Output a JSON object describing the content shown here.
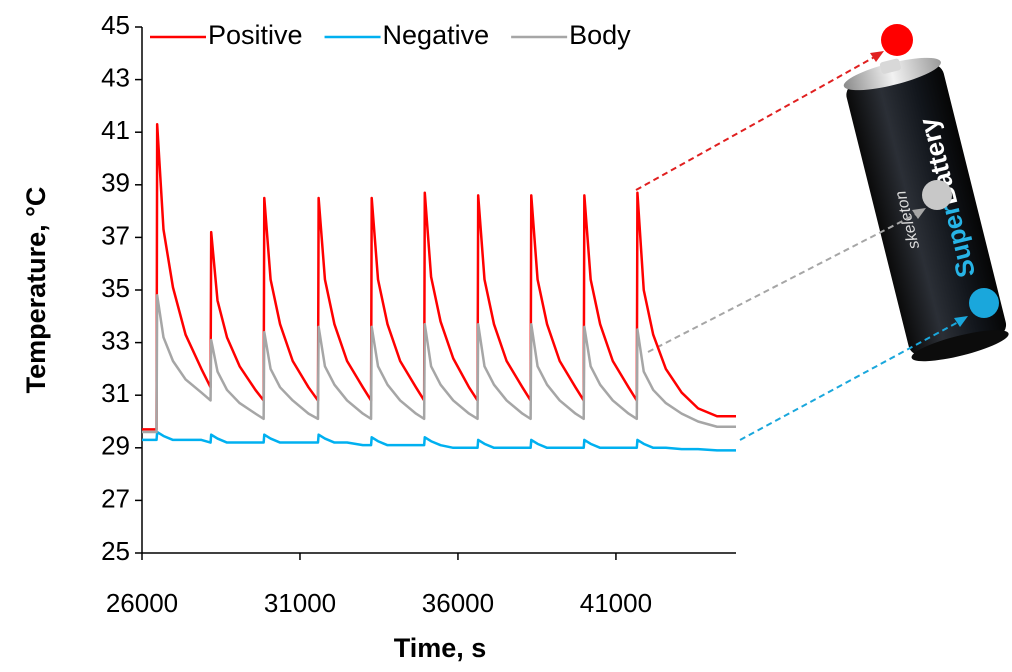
{
  "chart_data": {
    "type": "line",
    "y_label": "Temperature, °C",
    "x_label": "Time, s",
    "legend_position": "top",
    "grid": false,
    "xlim": [
      26000,
      44800
    ],
    "xticks": [
      26000,
      31000,
      36000,
      41000
    ],
    "ylim": [
      25,
      45
    ],
    "yticks": [
      25,
      27,
      29,
      31,
      33,
      35,
      37,
      39,
      41,
      43,
      45
    ],
    "x": [
      26000,
      26460,
      26480,
      26680,
      26980,
      27380,
      27880,
      28170,
      28190,
      28390,
      28690,
      29090,
      29590,
      29850,
      29870,
      30070,
      30370,
      30770,
      31270,
      31570,
      31590,
      31790,
      32090,
      32490,
      32990,
      33250,
      33270,
      33470,
      33770,
      34170,
      34670,
      34930,
      34950,
      35150,
      35450,
      35850,
      36350,
      36620,
      36640,
      36840,
      37140,
      37540,
      38040,
      38300,
      38320,
      38520,
      38820,
      39220,
      39720,
      39980,
      40000,
      40200,
      40500,
      40900,
      41400,
      41660,
      41680,
      41880,
      42180,
      42580,
      43080,
      43600,
      44200,
      44800
    ],
    "series": [
      {
        "name": "Positive",
        "color": "#ff0000",
        "values": [
          29.7,
          29.7,
          41.3,
          37.3,
          35.1,
          33.3,
          32.0,
          31.3,
          37.2,
          34.6,
          33.2,
          32.1,
          31.2,
          30.8,
          38.5,
          35.4,
          33.7,
          32.3,
          31.3,
          30.8,
          38.5,
          35.4,
          33.7,
          32.3,
          31.3,
          30.8,
          38.5,
          35.4,
          33.7,
          32.3,
          31.3,
          30.8,
          38.7,
          35.5,
          33.8,
          32.4,
          31.3,
          30.8,
          38.6,
          35.4,
          33.7,
          32.3,
          31.3,
          30.8,
          38.6,
          35.4,
          33.7,
          32.3,
          31.3,
          30.8,
          38.6,
          35.4,
          33.7,
          32.3,
          31.3,
          30.8,
          38.7,
          35.0,
          33.3,
          32.0,
          31.1,
          30.5,
          30.2,
          30.2
        ]
      },
      {
        "name": "Negative",
        "color": "#00b0f0",
        "values": [
          29.3,
          29.3,
          29.6,
          29.45,
          29.3,
          29.3,
          29.3,
          29.2,
          29.5,
          29.35,
          29.2,
          29.2,
          29.2,
          29.2,
          29.5,
          29.35,
          29.2,
          29.2,
          29.2,
          29.2,
          29.5,
          29.35,
          29.2,
          29.2,
          29.1,
          29.1,
          29.4,
          29.25,
          29.1,
          29.1,
          29.1,
          29.1,
          29.4,
          29.25,
          29.1,
          29.0,
          29.0,
          29.0,
          29.3,
          29.15,
          29.0,
          29.0,
          29.0,
          29.0,
          29.3,
          29.15,
          29.0,
          29.0,
          29.0,
          29.0,
          29.3,
          29.15,
          29.0,
          29.0,
          29.0,
          29.0,
          29.3,
          29.15,
          29.0,
          29.0,
          28.95,
          28.95,
          28.9,
          28.9
        ]
      },
      {
        "name": "Body",
        "color": "#a6a6a6",
        "values": [
          29.6,
          29.6,
          34.8,
          33.2,
          32.3,
          31.6,
          31.1,
          30.8,
          33.1,
          31.9,
          31.2,
          30.7,
          30.3,
          30.1,
          33.4,
          32.0,
          31.3,
          30.8,
          30.3,
          30.1,
          33.6,
          32.1,
          31.4,
          30.8,
          30.3,
          30.1,
          33.6,
          32.1,
          31.4,
          30.8,
          30.3,
          30.1,
          33.7,
          32.1,
          31.4,
          30.8,
          30.3,
          30.1,
          33.7,
          32.1,
          31.4,
          30.8,
          30.3,
          30.1,
          33.7,
          32.1,
          31.4,
          30.8,
          30.3,
          30.1,
          33.6,
          32.1,
          31.4,
          30.8,
          30.3,
          30.1,
          33.5,
          31.9,
          31.2,
          30.7,
          30.3,
          30.0,
          29.8,
          29.8
        ]
      }
    ]
  },
  "illustration": {
    "brand": "skeleton",
    "product_prefix": "Super",
    "product_suffix": "Battery"
  }
}
